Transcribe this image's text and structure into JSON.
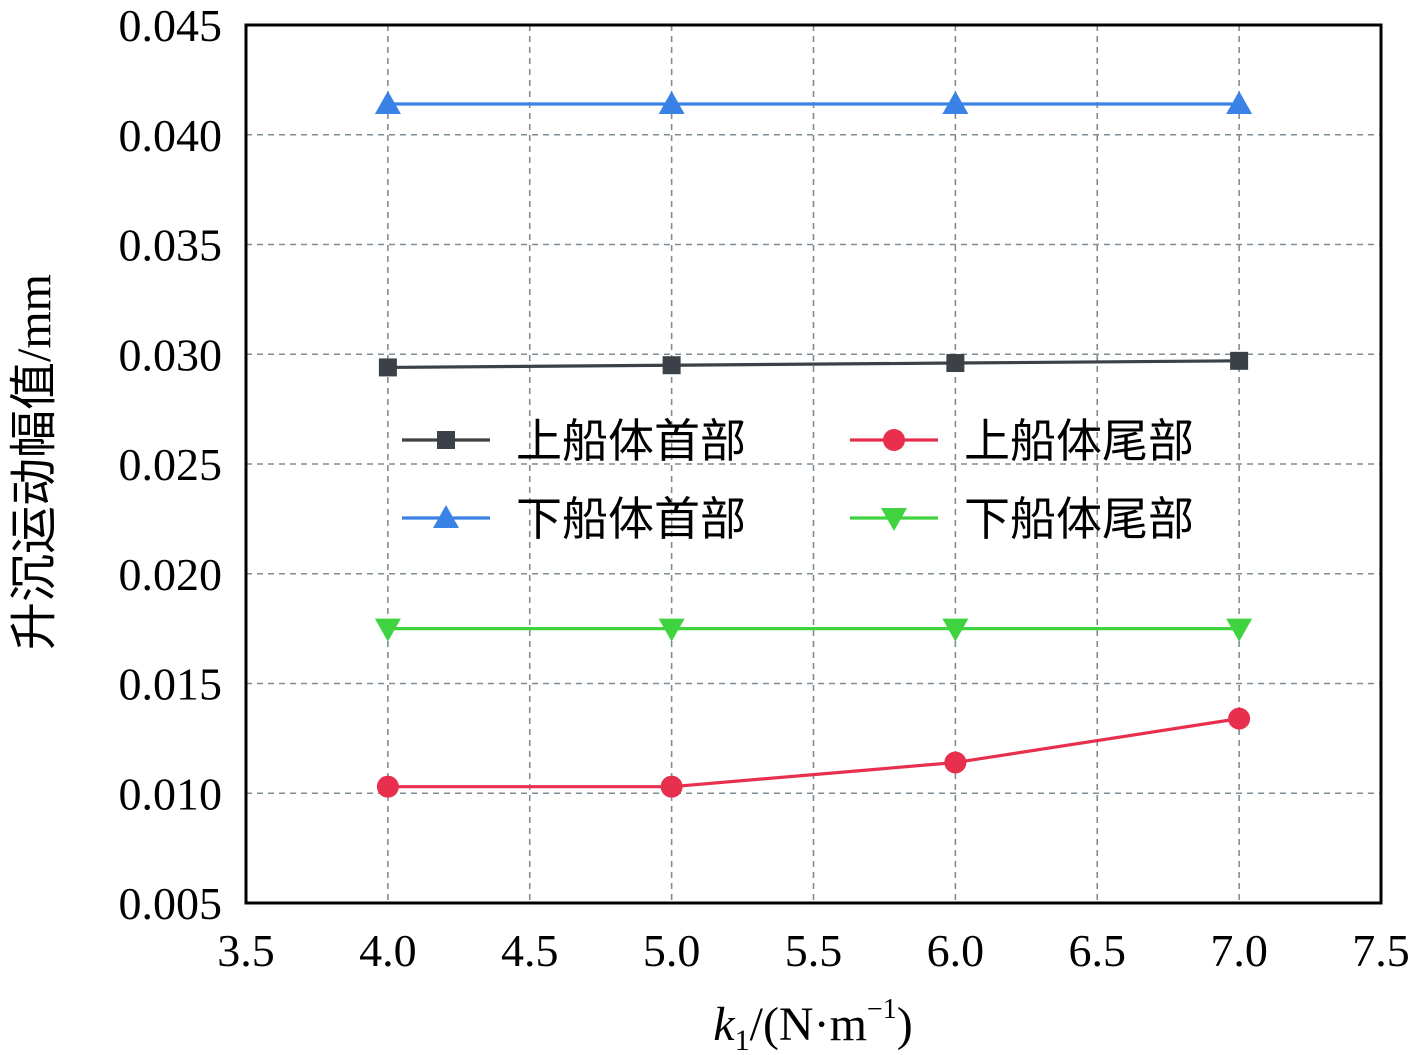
{
  "chart_data": {
    "type": "line",
    "xlabel_main": "k",
    "xlabel_sub": "1",
    "xlabel_rest": "/(N·m",
    "xlabel_sup": "−1",
    "xlabel_close": ")",
    "ylabel": "升沉运动幅值/mm",
    "xlim": [
      3.5,
      7.5
    ],
    "ylim": [
      0.005,
      0.045
    ],
    "xticks": [
      3.5,
      4.0,
      4.5,
      5.0,
      5.5,
      6.0,
      6.5,
      7.0,
      7.5
    ],
    "xtick_labels": [
      "3.5",
      "4.0",
      "4.5",
      "5.0",
      "5.5",
      "6.0",
      "6.5",
      "7.0",
      "7.5"
    ],
    "yticks": [
      0.005,
      0.01,
      0.015,
      0.02,
      0.025,
      0.03,
      0.035,
      0.04,
      0.045
    ],
    "ytick_labels": [
      "0.005",
      "0.010",
      "0.015",
      "0.020",
      "0.025",
      "0.030",
      "0.035",
      "0.040",
      "0.045"
    ],
    "grid": true,
    "legend_position": "center",
    "x": [
      4.0,
      5.0,
      6.0,
      7.0
    ],
    "series": [
      {
        "name": "上船体首部",
        "color": "#3b4146",
        "marker": "square",
        "values": [
          0.0294,
          0.0295,
          0.0296,
          0.0297
        ]
      },
      {
        "name": "上船体尾部",
        "color": "#e8304e",
        "marker": "circle",
        "values": [
          0.0103,
          0.0103,
          0.0114,
          0.0134
        ]
      },
      {
        "name": "下船体首部",
        "color": "#3a82e6",
        "marker": "triangle-up",
        "values": [
          0.0414,
          0.0414,
          0.0414,
          0.0414
        ]
      },
      {
        "name": "下船体尾部",
        "color": "#3fd33f",
        "marker": "triangle-down",
        "values": [
          0.0175,
          0.0175,
          0.0175,
          0.0175
        ]
      }
    ]
  }
}
